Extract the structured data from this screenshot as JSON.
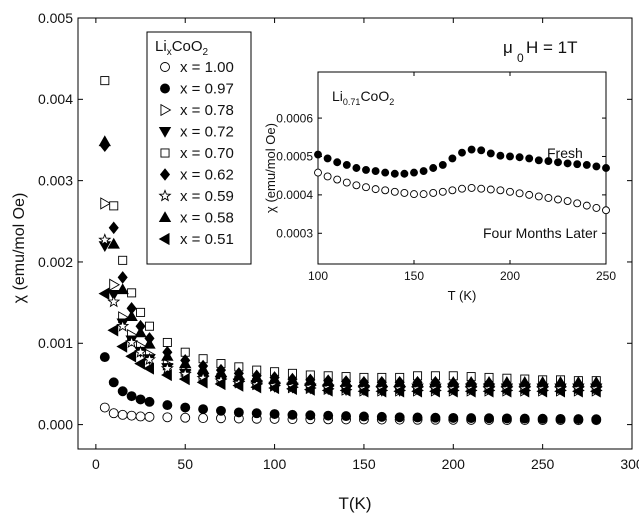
{
  "chart_data": [
    {
      "type": "scatter",
      "xlabel": "T(K)",
      "ylabel": "χ (emu/mol Oe)",
      "xlim": [
        -10,
        300
      ],
      "ylim": [
        -0.0003,
        0.005
      ],
      "x_ticks": [
        0,
        50,
        100,
        150,
        200,
        250,
        300
      ],
      "y_ticks": [
        0.0,
        0.001,
        0.002,
        0.003,
        0.004,
        0.005
      ],
      "x_tick_labels": [
        "0",
        "50",
        "100",
        "150",
        "200",
        "250",
        "300"
      ],
      "y_tick_labels": [
        "0.000",
        "0.001",
        "0.002",
        "0.003",
        "0.004",
        "0.005"
      ],
      "annotation": {
        "mu": "μ",
        "sub": "0",
        "rest": "H = 1T"
      },
      "legend": {
        "placement": "top-left",
        "title_main": "Li",
        "title_sub": "x",
        "title_rest": "CoO",
        "title_sub2": "2"
      },
      "x": [
        5,
        10,
        15,
        20,
        25,
        30,
        40,
        50,
        60,
        70,
        80,
        90,
        100,
        110,
        120,
        130,
        140,
        150,
        160,
        170,
        180,
        190,
        200,
        210,
        220,
        230,
        240,
        250,
        260,
        270,
        280
      ],
      "series": [
        {
          "name": "x = 1.00",
          "marker": "circle-open",
          "values": [
            0.00021,
            0.00014,
            0.00012,
            0.00011,
            0.0001,
            9.5e-05,
            9e-05,
            8.5e-05,
            8e-05,
            7.8e-05,
            7.5e-05,
            7.2e-05,
            7e-05,
            6.8e-05,
            6.6e-05,
            6.5e-05,
            6.4e-05,
            6.3e-05,
            6.2e-05,
            6.1e-05,
            6e-05,
            6e-05,
            5.9e-05,
            5.8e-05,
            5.8e-05,
            5.7e-05,
            5.7e-05,
            5.6e-05,
            5.6e-05,
            5.5e-05,
            5.5e-05
          ]
        },
        {
          "name": "x = 0.97",
          "marker": "circle-filled",
          "values": [
            0.00083,
            0.00052,
            0.00041,
            0.00035,
            0.00031,
            0.00028,
            0.00024,
            0.00021,
            0.00019,
            0.00017,
            0.00015,
            0.00014,
            0.00013,
            0.00012,
            0.000115,
            0.00011,
            0.000105,
            0.0001,
            9.5e-05,
            9e-05,
            8.8e-05,
            8.5e-05,
            8.2e-05,
            8e-05,
            7.8e-05,
            7.6e-05,
            7.4e-05,
            7.2e-05,
            7e-05,
            6.8e-05,
            6.6e-05
          ]
        },
        {
          "name": "x = 0.78",
          "marker": "triangle-right-open",
          "values": [
            0.00272,
            0.00172,
            0.00132,
            0.0011,
            0.00096,
            0.00086,
            0.00074,
            0.00066,
            0.0006,
            0.00056,
            0.00053,
            0.0005,
            0.00048,
            0.00046,
            0.00045,
            0.00044,
            0.00043,
            0.00042,
            0.00042,
            0.00042,
            0.00042,
            0.00042,
            0.00042,
            0.00042,
            0.00042,
            0.00042,
            0.00042,
            0.00042,
            0.00042,
            0.00042,
            0.00042
          ]
        },
        {
          "name": "x = 0.72",
          "marker": "triangle-down-filled",
          "values": [
            0.0022,
            0.0016,
            0.00125,
            0.00104,
            0.0009,
            0.00081,
            0.0007,
            0.00063,
            0.00058,
            0.00054,
            0.00051,
            0.00049,
            0.00047,
            0.00046,
            0.00045,
            0.00044,
            0.00043,
            0.00043,
            0.00042,
            0.00042,
            0.00045,
            0.00045,
            0.00045,
            0.00045,
            0.00045,
            0.00045,
            0.00045,
            0.00045,
            0.00045,
            0.00045,
            0.00045
          ]
        },
        {
          "name": "x = 0.70",
          "marker": "square-open",
          "values": [
            0.00423,
            0.00269,
            0.00202,
            0.00162,
            0.00138,
            0.00121,
            0.00101,
            0.00089,
            0.00081,
            0.00075,
            0.00071,
            0.00067,
            0.00065,
            0.00063,
            0.00061,
            0.0006,
            0.00059,
            0.00058,
            0.00058,
            0.00058,
            0.0006,
            0.0006,
            0.0006,
            0.00059,
            0.00058,
            0.00057,
            0.00056,
            0.00055,
            0.00055,
            0.00054,
            0.00054
          ]
        },
        {
          "name": "x = 0.62",
          "marker": "diamond-filled",
          "values": [
            0.00343,
            0.00242,
            0.00181,
            0.00143,
            0.00121,
            0.00106,
            0.00089,
            0.00079,
            0.00072,
            0.00067,
            0.00063,
            0.0006,
            0.00058,
            0.00056,
            0.00055,
            0.00054,
            0.00053,
            0.00052,
            0.00052,
            0.00052,
            0.00052,
            0.00052,
            0.00051,
            0.00051,
            0.00051,
            0.0005,
            0.0005,
            0.0005,
            0.0005,
            0.0005,
            0.0005
          ]
        },
        {
          "name": "x = 0.59",
          "marker": "star-open",
          "values": [
            0.00227,
            0.00151,
            0.00121,
            0.00101,
            0.00089,
            0.0008,
            0.00069,
            0.00062,
            0.00057,
            0.00054,
            0.00051,
            0.00049,
            0.00048,
            0.00047,
            0.00046,
            0.00045,
            0.00045,
            0.00044,
            0.00044,
            0.00044,
            0.00044,
            0.00044,
            0.00044,
            0.00044,
            0.00044,
            0.00044,
            0.00044,
            0.00044,
            0.00044,
            0.00044,
            0.00044
          ]
        },
        {
          "name": "x = 0.58",
          "marker": "triangle-up-filled",
          "values": [
            0.00348,
            0.00222,
            0.00166,
            0.00133,
            0.00113,
            0.00099,
            0.00084,
            0.00075,
            0.00068,
            0.00064,
            0.0006,
            0.00058,
            0.00056,
            0.00055,
            0.00054,
            0.00053,
            0.00052,
            0.00052,
            0.00052,
            0.00052,
            0.00052,
            0.00052,
            0.00052,
            0.00052,
            0.00052,
            0.00052,
            0.00052,
            0.00052,
            0.00052,
            0.00052,
            0.00052
          ]
        },
        {
          "name": "x = 0.51",
          "marker": "triangle-left-filled",
          "values": [
            0.00161,
            0.00116,
            0.00096,
            0.00084,
            0.00075,
            0.00069,
            0.00061,
            0.00056,
            0.00052,
            0.0005,
            0.00048,
            0.00046,
            0.00045,
            0.00044,
            0.00043,
            0.00042,
            0.00042,
            0.00041,
            0.00041,
            0.00041,
            0.00041,
            0.00041,
            0.00041,
            0.00041,
            0.00041,
            0.00041,
            0.00041,
            0.00041,
            0.00041,
            0.00041,
            0.00041
          ]
        }
      ]
    },
    {
      "type": "scatter",
      "title_main": "Li",
      "title_sub": "0.71",
      "title_rest": "CoO",
      "title_sub2": "2",
      "xlabel": "T (K)",
      "ylabel": "χ (emu/mol Oe)",
      "xlim": [
        100,
        250
      ],
      "ylim": [
        0.00022,
        0.00072
      ],
      "x_ticks": [
        100,
        150,
        200,
        250
      ],
      "y_ticks": [
        0.0003,
        0.0004,
        0.0005,
        0.0006
      ],
      "x_tick_labels": [
        "100",
        "150",
        "200",
        "250"
      ],
      "y_tick_labels": [
        "0.0003",
        "0.0004",
        "0.0005",
        "0.0006"
      ],
      "x": [
        100,
        105,
        110,
        115,
        120,
        125,
        130,
        135,
        140,
        145,
        150,
        155,
        160,
        165,
        170,
        175,
        180,
        185,
        190,
        195,
        200,
        205,
        210,
        215,
        220,
        225,
        230,
        235,
        240,
        245,
        250
      ],
      "series": [
        {
          "name": "Fresh",
          "marker": "circle-filled",
          "values": [
            0.000505,
            0.000495,
            0.000485,
            0.000478,
            0.00047,
            0.000465,
            0.000462,
            0.000458,
            0.000455,
            0.000455,
            0.000458,
            0.000462,
            0.00047,
            0.000478,
            0.000495,
            0.00051,
            0.000518,
            0.000516,
            0.000508,
            0.000502,
            0.0005,
            0.000498,
            0.000495,
            0.00049,
            0.000488,
            0.000485,
            0.000482,
            0.00048,
            0.000478,
            0.000474,
            0.00047
          ]
        },
        {
          "name": "Four Months Later",
          "marker": "circle-open",
          "values": [
            0.000458,
            0.000448,
            0.00044,
            0.000432,
            0.000425,
            0.00042,
            0.000415,
            0.000412,
            0.000408,
            0.000405,
            0.000402,
            0.000402,
            0.000405,
            0.000408,
            0.000412,
            0.000416,
            0.000418,
            0.000416,
            0.000414,
            0.000412,
            0.000408,
            0.000404,
            0.0004,
            0.000396,
            0.000392,
            0.000388,
            0.000384,
            0.000378,
            0.000372,
            0.000366,
            0.00036
          ]
        }
      ]
    }
  ]
}
